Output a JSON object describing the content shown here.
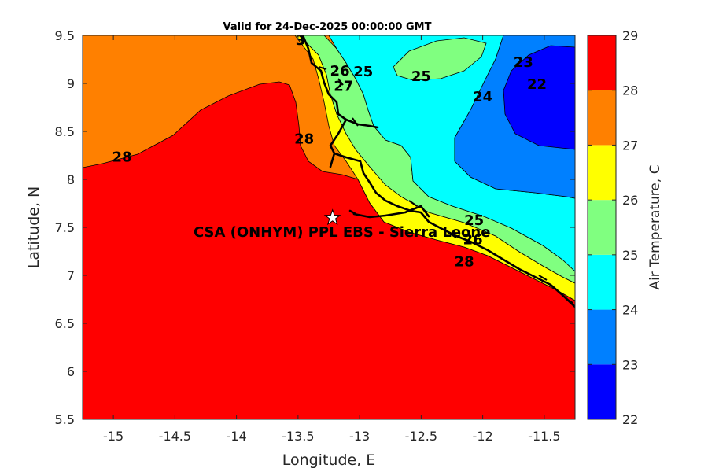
{
  "title": "Valid for 24-Dec-2025 00:00:00 GMT",
  "xlabel": "Longitude, E",
  "ylabel": "Latitude, N",
  "colorbar_label": "Air Temperature, C",
  "x_ticks": [
    "-15",
    "-14.5",
    "-14",
    "-13.5",
    "-13",
    "-12.5",
    "-12",
    "-11.5"
  ],
  "y_ticks": [
    "9.5",
    "9",
    "8.5",
    "8",
    "7.5",
    "7",
    "6.5",
    "6",
    "5.5"
  ],
  "colorbar_ticks": [
    "29",
    "28",
    "27",
    "26",
    "25",
    "24",
    "23",
    "22"
  ],
  "site_label": "CSA (ONHYM) PPL EBS  - Sierra Leone",
  "site_icon": "star-marker-icon",
  "chart_data": {
    "type": "contour",
    "xlim": [
      -15.25,
      -11.25
    ],
    "ylim": [
      5.5,
      9.5
    ],
    "clim": [
      22,
      29
    ],
    "levels": [
      22,
      23,
      24,
      25,
      26,
      27,
      28,
      29
    ],
    "level_colors": {
      "22": "#0000ff",
      "23": "#0080ff",
      "24": "#00ffff",
      "25": "#80ff80",
      "26": "#ffff00",
      "27": "#ff8000",
      "28": "#ff0000",
      "29": "#800000"
    },
    "site": {
      "lon": -13.22,
      "lat": 7.6
    },
    "contour_labels": [
      {
        "text": "28",
        "lon": -14.93,
        "lat": 8.24
      },
      {
        "text": "28",
        "lon": -13.45,
        "lat": 8.43
      },
      {
        "text": "28",
        "lon": -12.15,
        "lat": 7.15
      },
      {
        "text": "27",
        "lon": -13.13,
        "lat": 8.98
      },
      {
        "text": "26",
        "lon": -13.16,
        "lat": 9.14
      },
      {
        "text": "26",
        "lon": -12.08,
        "lat": 7.38
      },
      {
        "text": "25",
        "lon": -12.97,
        "lat": 9.13
      },
      {
        "text": "25",
        "lon": -12.5,
        "lat": 9.08
      },
      {
        "text": "25",
        "lon": -12.07,
        "lat": 7.58
      },
      {
        "text": "24",
        "lon": -12.0,
        "lat": 8.87
      },
      {
        "text": "23",
        "lon": -11.67,
        "lat": 9.23
      },
      {
        "text": "22",
        "lon": -11.56,
        "lat": 9.0
      },
      {
        "text": "3",
        "lon": -13.48,
        "lat": 9.46
      }
    ]
  }
}
